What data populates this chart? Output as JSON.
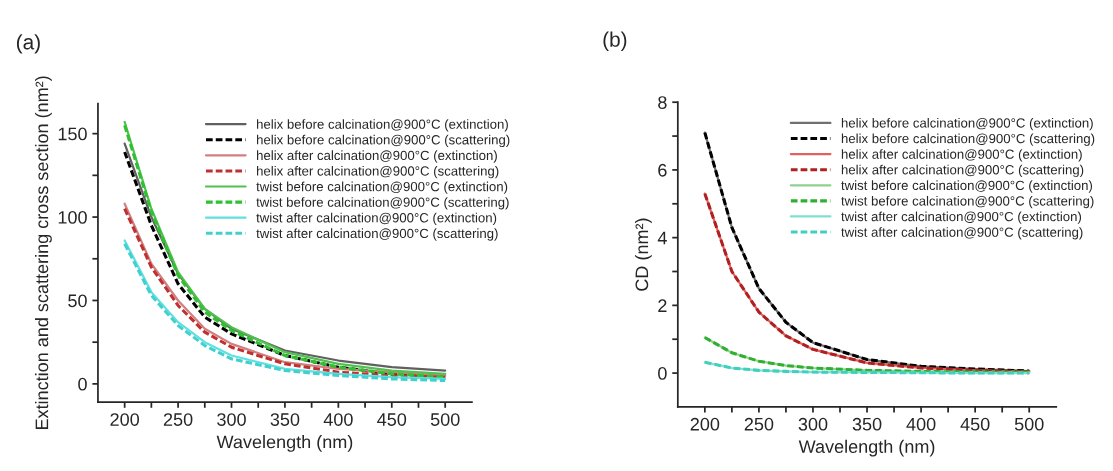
{
  "chart_data": [
    {
      "type": "line",
      "title": "(a)",
      "xlabel": "Wavelength (nm)",
      "ylabel": "Extinction and scattering cross section (nm²)",
      "x": [
        200,
        225,
        250,
        275,
        300,
        350,
        400,
        450,
        500
      ],
      "xlim": [
        175,
        525
      ],
      "ylim": [
        -11,
        168
      ],
      "xticks": [
        200,
        {
          "value": 225,
          "label": null
        },
        250,
        {
          "value": 275,
          "label": null
        },
        300,
        {
          "value": 325,
          "label": null
        },
        350,
        {
          "value": 375,
          "label": null
        },
        400,
        {
          "value": 425,
          "label": null
        },
        450,
        {
          "value": 475,
          "label": null
        },
        500
      ],
      "yticks": [
        0,
        {
          "value": 25,
          "label": null
        },
        50,
        {
          "value": 75,
          "label": null
        },
        100,
        {
          "value": 125,
          "label": null
        },
        150
      ],
      "legend": "top right",
      "grid": false,
      "series": [
        {
          "name": "helix before calcination@900°C (extinction)",
          "color": "#606060",
          "line_style": "solid",
          "values": [
            144,
            100,
            66,
            45,
            33,
            20,
            14,
            10,
            8
          ]
        },
        {
          "name": "helix before calcination@900°C (scattering)",
          "color": "#000000",
          "line_style": "dashed",
          "values": [
            139,
            95,
            60,
            40,
            30,
            17,
            10,
            6,
            4
          ]
        },
        {
          "name": "helix after calcination@900°C (extinction)",
          "color": "#d08080",
          "line_style": "solid",
          "values": [
            108,
            72,
            50,
            33,
            24,
            13,
            9,
            7,
            5
          ]
        },
        {
          "name": "helix after calcination@900°C (scattering)",
          "color": "#c03030",
          "line_style": "dashed",
          "values": [
            105,
            70,
            47,
            31,
            22,
            12,
            7,
            5,
            4
          ]
        },
        {
          "name": "twist before calcination@900°C (extinction)",
          "color": "#50c050",
          "line_style": "solid",
          "values": [
            157,
            105,
            67,
            45,
            34,
            19,
            12,
            8,
            6
          ]
        },
        {
          "name": "twist before calcination@900°C (scattering)",
          "color": "#30c030",
          "line_style": "dashed",
          "values": [
            155,
            103,
            65,
            43,
            32,
            17,
            10,
            6,
            4
          ]
        },
        {
          "name": "twist after calcination@900°C (extinction)",
          "color": "#60e0e0",
          "line_style": "solid",
          "values": [
            86,
            55,
            37,
            25,
            17,
            9,
            6,
            4,
            3
          ]
        },
        {
          "name": "twist after calcination@900°C (scattering)",
          "color": "#40d0d0",
          "line_style": "dashed",
          "values": [
            84,
            53,
            35,
            23,
            15,
            8,
            5,
            3,
            2
          ]
        }
      ]
    },
    {
      "type": "line",
      "title": "(b)",
      "xlabel": "Wavelength (nm)",
      "ylabel": "CD (nm²)",
      "x": [
        200,
        225,
        250,
        275,
        300,
        350,
        400,
        450,
        500
      ],
      "xlim": [
        175,
        525
      ],
      "ylim": [
        -1,
        8
      ],
      "xticks": [
        200,
        {
          "value": 225,
          "label": null
        },
        250,
        {
          "value": 275,
          "label": null
        },
        300,
        {
          "value": 325,
          "label": null
        },
        350,
        {
          "value": 375,
          "label": null
        },
        400,
        {
          "value": 425,
          "label": null
        },
        450,
        {
          "value": 475,
          "label": null
        },
        500
      ],
      "yticks": [
        0,
        {
          "value": 1,
          "label": null
        },
        2,
        {
          "value": 3,
          "label": null
        },
        4,
        {
          "value": 5,
          "label": null
        },
        6,
        {
          "value": 7,
          "label": null
        },
        8
      ],
      "legend": "top right",
      "grid": false,
      "series": [
        {
          "name": "helix before calcination@900°C (extinction)",
          "color": "#707070",
          "line_style": "solid",
          "values": [
            7.1,
            4.3,
            2.5,
            1.5,
            0.9,
            0.4,
            0.2,
            0.12,
            0.06
          ]
        },
        {
          "name": "helix before calcination@900°C (scattering)",
          "color": "#000000",
          "line_style": "dashed",
          "values": [
            7.1,
            4.3,
            2.5,
            1.5,
            0.9,
            0.4,
            0.2,
            0.12,
            0.06
          ]
        },
        {
          "name": "helix after calcination@900°C (extinction)",
          "color": "#e06060",
          "line_style": "solid",
          "values": [
            5.3,
            3.0,
            1.8,
            1.1,
            0.7,
            0.3,
            0.15,
            0.08,
            0.04
          ]
        },
        {
          "name": "helix after calcination@900°C (scattering)",
          "color": "#b02020",
          "line_style": "dashed",
          "values": [
            5.3,
            3.0,
            1.8,
            1.1,
            0.7,
            0.3,
            0.15,
            0.08,
            0.04
          ]
        },
        {
          "name": "twist before calcination@900°C (extinction)",
          "color": "#90d090",
          "line_style": "solid",
          "values": [
            1.05,
            0.6,
            0.35,
            0.22,
            0.15,
            0.08,
            0.05,
            0.03,
            0.02
          ]
        },
        {
          "name": "twist before calcination@900°C (scattering)",
          "color": "#30b030",
          "line_style": "dashed",
          "values": [
            1.05,
            0.6,
            0.35,
            0.22,
            0.15,
            0.08,
            0.05,
            0.03,
            0.02
          ]
        },
        {
          "name": "twist after calcination@900°C (extinction)",
          "color": "#80e0d0",
          "line_style": "solid",
          "values": [
            0.32,
            0.15,
            0.08,
            0.05,
            0.03,
            0.02,
            0.01,
            0.0,
            0.0
          ]
        },
        {
          "name": "twist after calcination@900°C (scattering)",
          "color": "#40d0c0",
          "line_style": "dashed",
          "values": [
            0.32,
            0.15,
            0.08,
            0.05,
            0.03,
            0.02,
            0.01,
            0.0,
            0.0
          ]
        }
      ]
    }
  ]
}
